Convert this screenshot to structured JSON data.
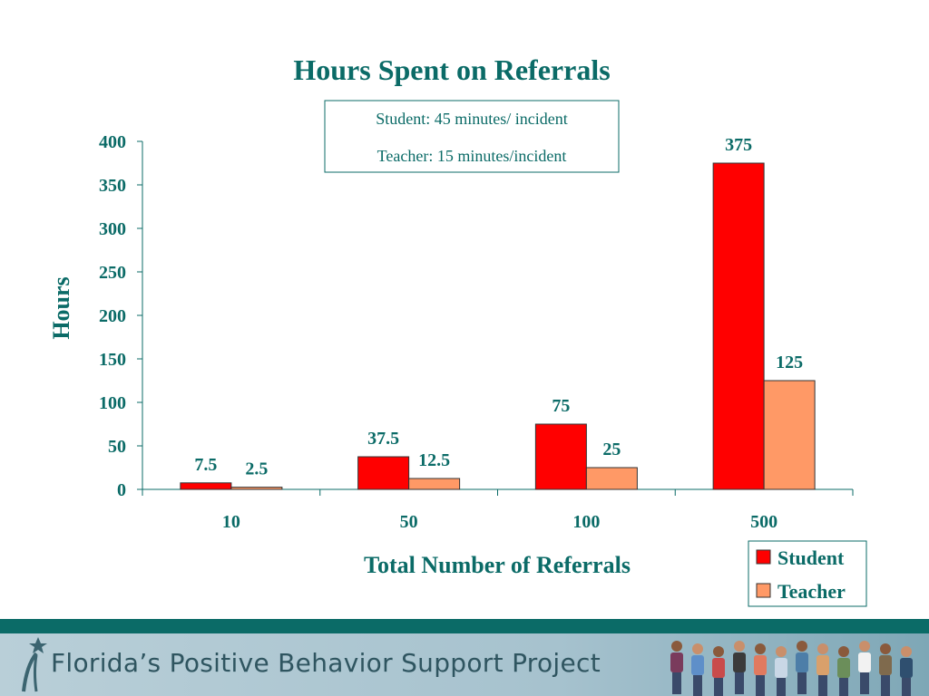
{
  "chart_data": {
    "type": "bar",
    "title": "Hours Spent on Referrals",
    "xlabel": "Total Number of Referrals",
    "ylabel": "Hours",
    "categories": [
      "10",
      "50",
      "100",
      "500"
    ],
    "ylim": [
      0,
      400
    ],
    "yticks": [
      "0",
      "50",
      "100",
      "150",
      "200",
      "250",
      "300",
      "350",
      "400"
    ],
    "series": [
      {
        "name": "Student",
        "values": [
          7.5,
          37.5,
          75,
          375
        ],
        "labels": [
          "7.5",
          "37.5",
          "75",
          "375"
        ],
        "color": "#ff0000"
      },
      {
        "name": "Teacher",
        "values": [
          2.5,
          12.5,
          25,
          125
        ],
        "labels": [
          "2.5",
          "12.5",
          "25",
          "125"
        ],
        "color": "#ff9966"
      }
    ],
    "note": [
      "Student: 45 minutes/ incident",
      "Teacher: 15 minutes/incident"
    ],
    "legend_position": "bottom-right",
    "grid": false
  },
  "colors": {
    "text": "#0b6b67",
    "footer_stripe": "#0b6b67"
  },
  "footer": {
    "title": "Florida’s Positive Behavior Support Project",
    "logo_icon": "star-figure-icon",
    "image": "children-group-image"
  }
}
